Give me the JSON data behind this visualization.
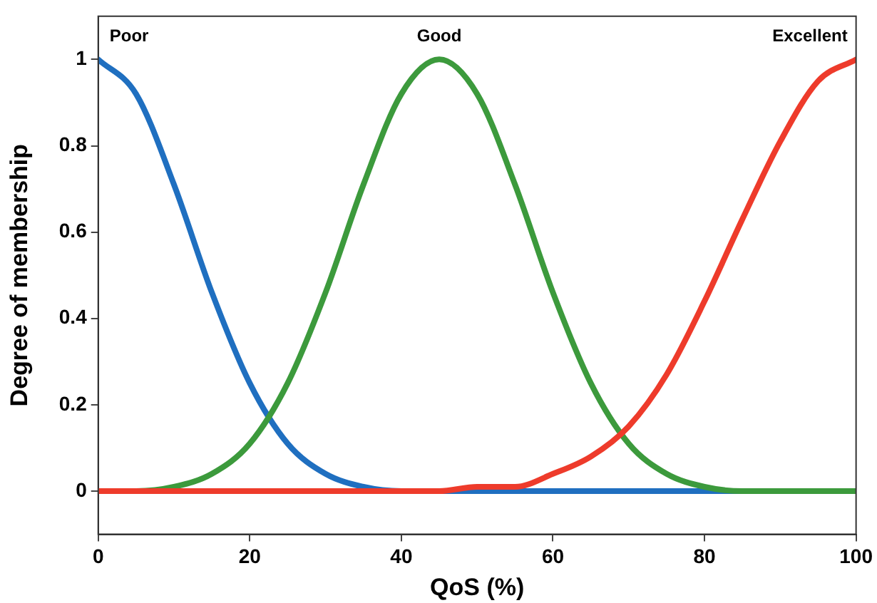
{
  "chart_data": {
    "type": "line",
    "xlabel": "QoS (%)",
    "ylabel": "Degree of membership",
    "x": [
      0,
      5,
      10,
      15,
      20,
      25,
      30,
      35,
      40,
      45,
      50,
      55,
      60,
      65,
      70,
      75,
      80,
      85,
      90,
      95,
      100
    ],
    "series": [
      {
        "name": "Poor",
        "color": "#1f6fc0",
        "values": [
          1,
          0.92,
          0.71,
          0.46,
          0.25,
          0.11,
          0.04,
          0.01,
          0,
          0,
          0,
          0,
          0,
          0,
          0,
          0,
          0,
          0,
          0,
          null,
          null
        ]
      },
      {
        "name": "Good",
        "color": "#3c9a3c",
        "values": [
          0,
          0,
          0.01,
          0.04,
          0.11,
          0.25,
          0.46,
          0.71,
          0.92,
          1,
          0.92,
          0.71,
          0.46,
          0.25,
          0.11,
          0.04,
          0.01,
          0,
          0,
          0,
          0
        ]
      },
      {
        "name": "Excellent",
        "color": "#ee3b2b",
        "values": [
          0,
          0,
          0,
          0,
          0,
          0,
          0,
          0,
          0,
          0,
          0.01,
          0.01,
          0.04,
          0.08,
          0.15,
          0.27,
          0.44,
          0.63,
          0.81,
          0.95,
          1
        ]
      }
    ],
    "xlim": [
      0,
      100
    ],
    "xticks": [
      0,
      20,
      40,
      60,
      80,
      100
    ],
    "ylim": [
      -0.1,
      1.1
    ],
    "yticks": [
      0,
      0.2,
      0.4,
      0.6,
      0.8,
      1
    ],
    "grid": false,
    "legend": false
  }
}
